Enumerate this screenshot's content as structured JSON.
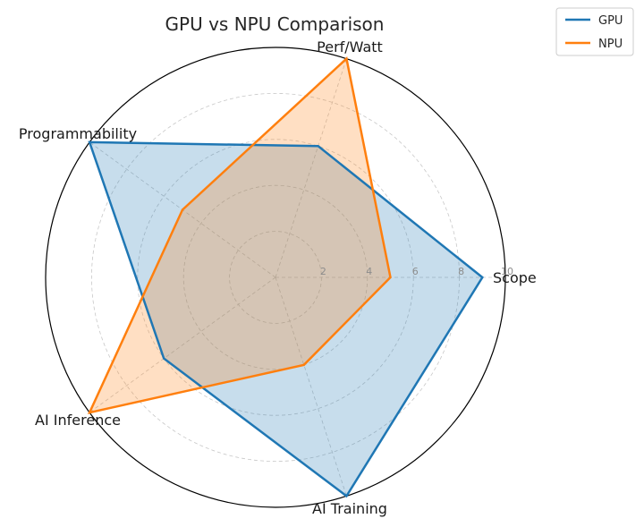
{
  "chart_data": {
    "type": "radar",
    "title": "GPU vs NPU Comparison",
    "categories": [
      "Scope",
      "Perf/Watt",
      "Programmability",
      "AI Inference",
      "AI Training"
    ],
    "rticks": [
      2,
      4,
      6,
      8,
      10
    ],
    "rlim": [
      0,
      10
    ],
    "grid": true,
    "legend_position": "top-right",
    "series": [
      {
        "name": "GPU",
        "values": [
          9,
          6,
          10,
          6,
          10
        ],
        "color": "#1f77b4"
      },
      {
        "name": "NPU",
        "values": [
          5,
          10,
          5,
          10,
          4
        ],
        "color": "#ff7f0e"
      }
    ]
  }
}
